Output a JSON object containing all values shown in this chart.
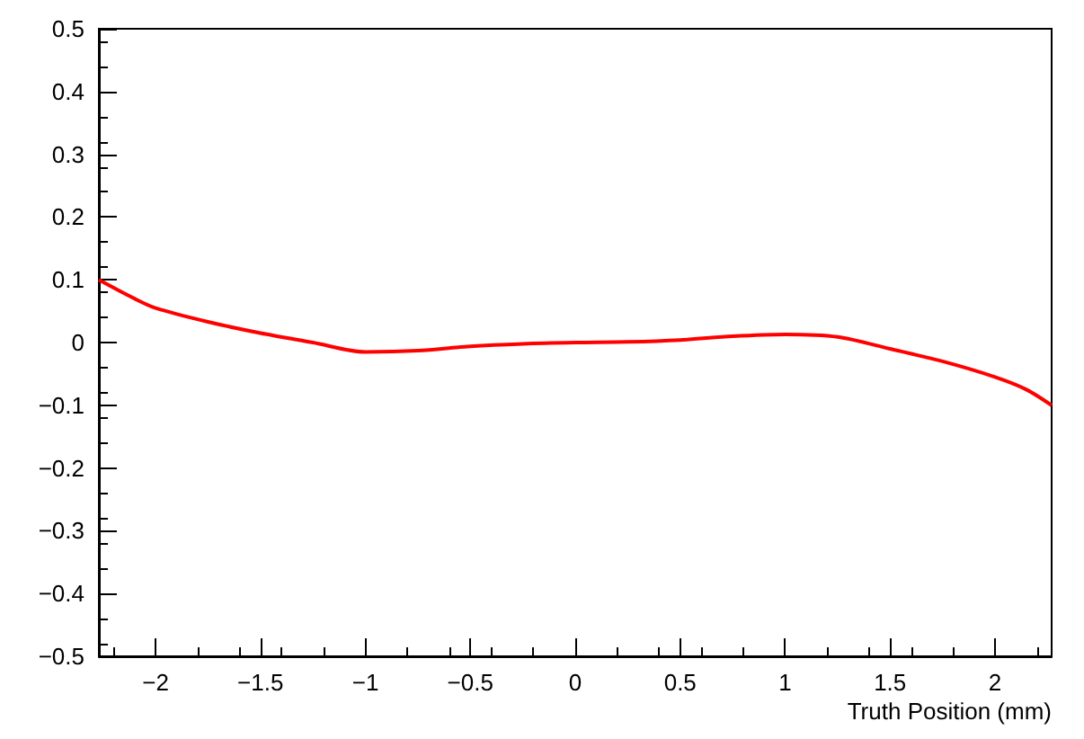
{
  "chart_data": {
    "type": "line",
    "xlabel": "Truth Position (mm)",
    "x": [
      -2.27,
      -2.1,
      -2,
      -1.75,
      -1.5,
      -1.25,
      -1,
      -0.75,
      -0.5,
      -0.25,
      0,
      0.25,
      0.5,
      0.75,
      1,
      1.25,
      1.5,
      1.75,
      2,
      2.15,
      2.27
    ],
    "series": [
      {
        "color": "#ff0000",
        "values": [
          0.1,
          0.07,
          0.055,
          0.033,
          0.015,
          0.0,
          -0.015,
          -0.013,
          -0.006,
          -0.002,
          0,
          0.001,
          0.004,
          0.01,
          0.013,
          0.009,
          -0.01,
          -0.03,
          -0.055,
          -0.075,
          -0.1
        ]
      }
    ],
    "xlim": [
      -2.27,
      2.27
    ],
    "xticks": [
      {
        "value": -2,
        "label": "−2"
      },
      {
        "value": -1.5,
        "label": "−1.5"
      },
      {
        "value": -1,
        "label": "−1"
      },
      {
        "value": -0.5,
        "label": "−0.5"
      },
      0,
      0.5,
      1,
      1.5,
      2
    ],
    "ylim": [
      -0.5,
      0.5
    ],
    "yticks": [
      {
        "value": -0.5,
        "label": "−0.5"
      },
      {
        "value": -0.4,
        "label": "−0.4"
      },
      {
        "value": -0.3,
        "label": "−0.3"
      },
      {
        "value": -0.2,
        "label": "−0.2"
      },
      {
        "value": -0.1,
        "label": "−0.1"
      },
      0,
      0.1,
      0.2,
      0.3,
      0.4,
      0.5
    ],
    "grid": false,
    "line_style": "solid"
  }
}
